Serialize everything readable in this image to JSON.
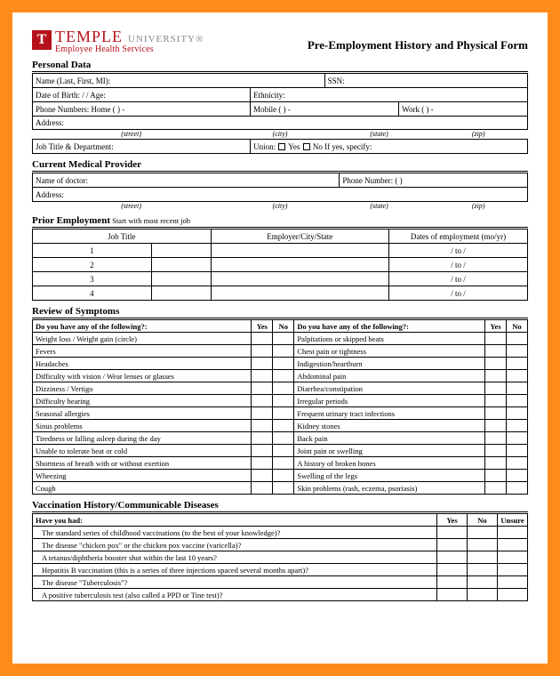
{
  "frame_color": "#ff8c1a",
  "logo": {
    "letter": "T",
    "main": "TEMPLE",
    "univ": "UNIVERSITY®",
    "sub": "Employee Health Services",
    "brand_color": "#b5121b"
  },
  "form_title": "Pre-Employment History and Physical Form",
  "personal": {
    "title": "Personal Data",
    "name_label": "Name (Last, First, MI):",
    "ssn_label": "SSN:",
    "dob_label": "Date of Birth:        /       /            Age:",
    "ethnicity_label": "Ethnicity:",
    "phone_label": "Phone Numbers:     Home (      )           -",
    "mobile_label": "Mobile (      )           -",
    "work_label": "Work (      )           -",
    "address_label": "Address:",
    "addr_cols": [
      "(street)",
      "(city)",
      "(state)",
      "(zip)"
    ],
    "jobtitle_label": "Job Title & Department:",
    "union_label": "Union: ",
    "union_yes": " Yes ",
    "union_no": " No   If yes, specify:"
  },
  "provider": {
    "title": "Current Medical Provider",
    "doctor_label": "Name of doctor:",
    "phone_label": "Phone Number:     (        )",
    "address_label": "Address:",
    "addr_cols": [
      "(street)",
      "(city)",
      "(state)",
      "(zip)"
    ]
  },
  "employment": {
    "title": "Prior Employment",
    "note": " Start with most recent job",
    "headers": [
      "Job Title",
      "Employer/City/State",
      "Dates of employment (mo/yr)"
    ],
    "rows": [
      1,
      2,
      3,
      4
    ],
    "date_fmt": "/        to        /"
  },
  "symptoms": {
    "title": "Review of Symptoms",
    "q": "Do you have any of the following?:",
    "yes": "Yes",
    "no": "No",
    "left": [
      "Weight loss / Weight gain (circle)",
      "Fevers",
      "Headaches",
      "Difficulty with vision / Wear lenses or glasses",
      "Dizziness / Vertigo",
      "Difficulty hearing",
      "Seasonal allergies",
      "Sinus problems",
      "Tiredness or falling asleep during the day",
      "Unable to tolerate heat or cold",
      "Shortness of breath with or without exertion",
      "Wheezing",
      "Cough"
    ],
    "right": [
      "Palpitations or skipped beats",
      "Chest pain or tightness",
      "Indigestion/heartburn",
      "Abdominal pain",
      "Diarrhea/constipation",
      "Irregular periods",
      "Frequent urinary tract infections",
      "Kidney stones",
      "Back pain",
      "Joint pain or swelling",
      "A history of broken bones",
      "Swelling of the legs",
      "Skin problems (rash, eczema, psoriasis)"
    ]
  },
  "vaccination": {
    "title": "Vaccination History/Communicable Diseases",
    "q": "Have you had:",
    "cols": [
      "Yes",
      "No",
      "Unsure"
    ],
    "items": [
      "The standard series of childhood vaccinations (to the best of your knowledge)?",
      "The disease \"chicken pox\" or the chicken pox vaccine (varicella)?",
      "A tetanus/diphtheria booster shot within the last 10 years?",
      "Hepatitis B vaccination (this is a series of three injections spaced several months apart)?",
      "The disease \"Tuberculosis\"?",
      "A positive tuberculosis test (also called a PPD or Tine test)?"
    ]
  }
}
